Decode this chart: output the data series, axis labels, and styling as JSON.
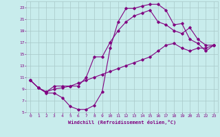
{
  "title": "",
  "xlabel": "Windchill (Refroidissement éolien,°C)",
  "ylabel": "",
  "bg_color": "#c8ecec",
  "line_color": "#800080",
  "grid_color": "#a8c8c8",
  "text_color": "#800080",
  "xlim": [
    -0.5,
    23.5
  ],
  "ylim": [
    5,
    24
  ],
  "xticks": [
    0,
    1,
    2,
    3,
    4,
    5,
    6,
    7,
    8,
    9,
    10,
    11,
    12,
    13,
    14,
    15,
    16,
    17,
    18,
    19,
    20,
    21,
    22,
    23
  ],
  "yticks": [
    5,
    7,
    9,
    11,
    13,
    15,
    17,
    19,
    21,
    23
  ],
  "curve1_x": [
    0,
    1,
    2,
    3,
    4,
    5,
    6,
    7,
    8,
    9,
    10,
    11,
    12,
    13,
    14,
    15,
    16,
    17,
    18,
    19,
    20,
    21,
    22,
    23
  ],
  "curve1_y": [
    10.5,
    9.2,
    8.3,
    8.3,
    7.5,
    6.0,
    5.5,
    5.5,
    6.2,
    8.5,
    16.0,
    20.5,
    22.8,
    22.8,
    23.2,
    23.5,
    23.5,
    22.5,
    20.0,
    20.2,
    17.5,
    16.8,
    15.5,
    16.5
  ],
  "curve2_x": [
    0,
    1,
    2,
    3,
    4,
    5,
    6,
    7,
    8,
    9,
    10,
    11,
    12,
    13,
    14,
    15,
    16,
    17,
    18,
    19,
    20,
    21,
    22,
    23
  ],
  "curve2_y": [
    10.5,
    9.2,
    8.5,
    9.5,
    9.5,
    9.5,
    9.5,
    11.0,
    14.5,
    14.5,
    17.0,
    19.0,
    20.5,
    21.5,
    22.0,
    22.5,
    20.5,
    20.0,
    19.0,
    18.5,
    19.5,
    17.5,
    16.5,
    16.5
  ],
  "curve3_x": [
    0,
    1,
    2,
    3,
    4,
    5,
    6,
    7,
    8,
    9,
    10,
    11,
    12,
    13,
    14,
    15,
    16,
    17,
    18,
    19,
    20,
    21,
    22,
    23
  ],
  "curve3_y": [
    10.5,
    9.2,
    8.5,
    9.0,
    9.2,
    9.5,
    10.0,
    10.5,
    11.0,
    11.5,
    12.0,
    12.5,
    13.0,
    13.5,
    14.0,
    14.5,
    15.5,
    16.5,
    16.8,
    16.0,
    15.5,
    16.0,
    16.0,
    16.5
  ],
  "figsize": [
    3.2,
    2.0
  ],
  "dpi": 100
}
